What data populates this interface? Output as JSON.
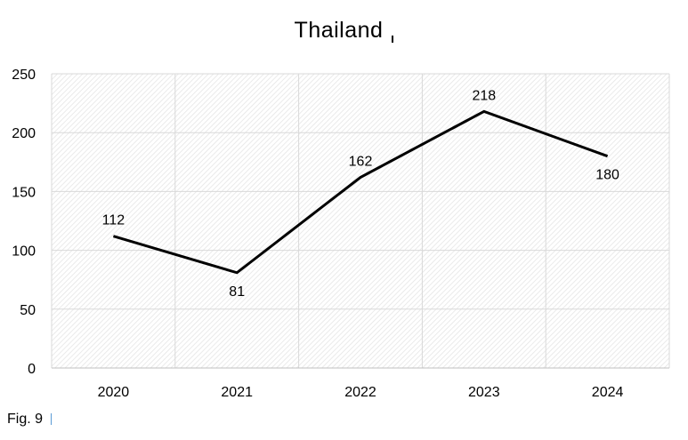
{
  "chart_data": {
    "type": "line",
    "title": "Thailand",
    "categories": [
      "2020",
      "2021",
      "2022",
      "2023",
      "2024"
    ],
    "series": [
      {
        "values": [
          112,
          81,
          162,
          218,
          180
        ]
      }
    ],
    "data_labels": [
      "112",
      "81",
      "162",
      "218",
      "180"
    ],
    "xlabel": "",
    "ylabel": "",
    "ylim": [
      0,
      250
    ],
    "yticks": [
      "0",
      "50",
      "100",
      "150",
      "200",
      "250"
    ],
    "grid": true,
    "legend": "none",
    "colors": {
      "line": "#000000",
      "grid": "#d9d9d9",
      "plot_pattern": "#e4e4e4"
    }
  },
  "caption": "Fig. 9"
}
